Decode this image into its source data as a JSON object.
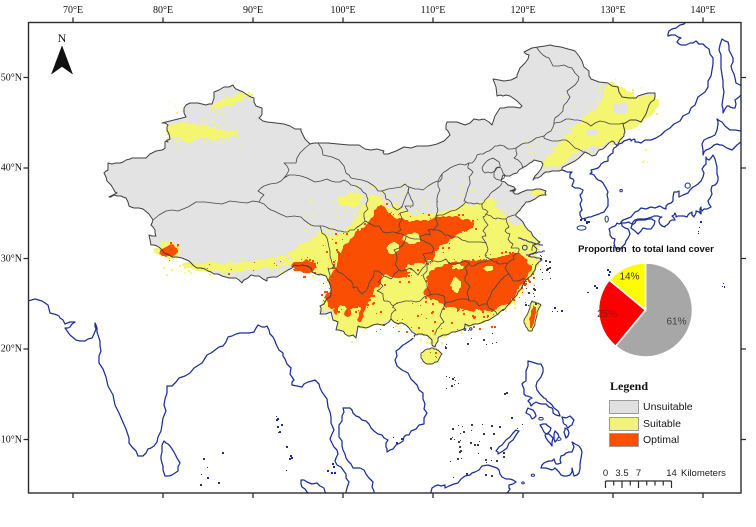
{
  "axes": {
    "top_labels": [
      "70°E",
      "80°E",
      "90°E",
      "100°E",
      "110°E",
      "120°E",
      "130°E",
      "140°E"
    ],
    "left_labels": [
      "50°N",
      "40°N",
      "30°N",
      "20°N",
      "10°N"
    ]
  },
  "north_arrow": {
    "label": "N"
  },
  "chart_data": {
    "type": "pie",
    "title": "Proportion  to total land cover",
    "slices": [
      {
        "label": "Unsuitable",
        "value": 61,
        "color": "#a7a7a7",
        "text": "61%",
        "text_color": "#3f3f3f"
      },
      {
        "label": "Optimal",
        "value": 25,
        "color": "#fb0000",
        "text": "25%",
        "text_color": "#8f1414"
      },
      {
        "label": "Suitable",
        "value": 14,
        "color": "#fdfd00",
        "text": "14%",
        "text_color": "#3b3b00"
      }
    ],
    "start_angle_deg": 0,
    "direction": "clockwise"
  },
  "legend": {
    "title": "Legend",
    "items": [
      {
        "label": "Unsuitable",
        "color": "#e0e0e0"
      },
      {
        "label": "Suitable",
        "color": "#f2f37c"
      },
      {
        "label": "Optimal",
        "color": "#fb4f02"
      }
    ]
  },
  "scalebar": {
    "tick_labels": [
      "0",
      "3.5",
      "7",
      "14"
    ],
    "unit": "Kilometers"
  },
  "map": {
    "colors": {
      "unsuitable": "#e3e3e3",
      "suitable": "#f4f670",
      "optimal": "#fa4f02",
      "coastline": "#1b2f96",
      "boundary": "#3f3f3f"
    }
  }
}
